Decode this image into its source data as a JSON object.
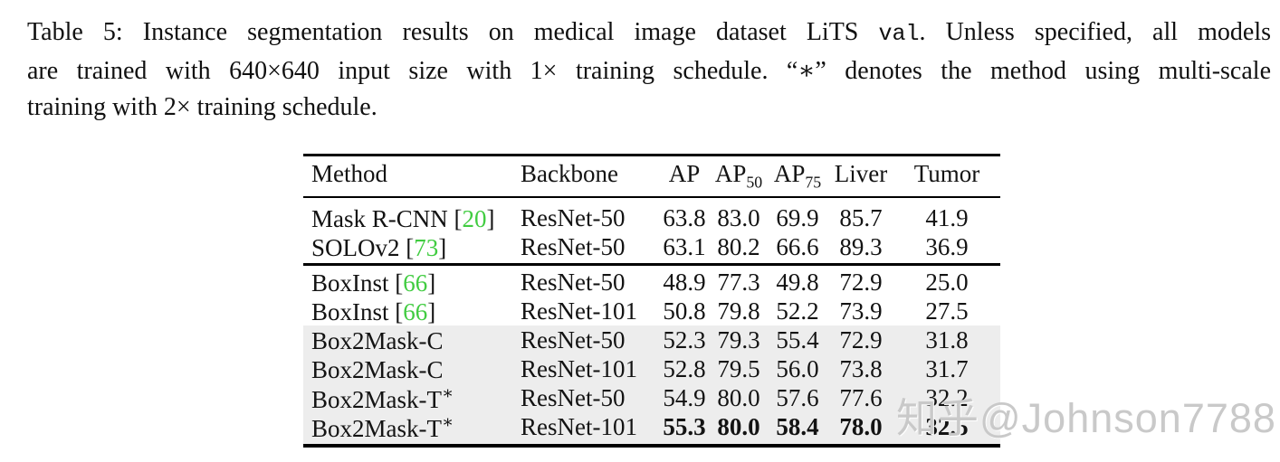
{
  "caption": {
    "line1_seg1": "Table 5: Instance segmentation results on medical image dataset LiTS ",
    "line1_code": "val",
    "line1_seg2": ". Unless specified, all models",
    "line2": "are trained with 640×640 input size with 1× training schedule. “∗” denotes the method using multi-scale",
    "line3": "training with 2× training schedule."
  },
  "table": {
    "columns": [
      {
        "label": "Method",
        "sub": ""
      },
      {
        "label": "Backbone",
        "sub": ""
      },
      {
        "label": "AP",
        "sub": ""
      },
      {
        "label": "AP",
        "sub": "50"
      },
      {
        "label": "AP",
        "sub": "75"
      },
      {
        "label": "Liver",
        "sub": ""
      },
      {
        "label": "Tumor",
        "sub": ""
      }
    ],
    "rows": [
      {
        "method": "Mask R-CNN",
        "sup": "",
        "cite_open": " [",
        "cite": "20",
        "cite_close": "]",
        "backbone": "ResNet-50",
        "values": [
          "63.8",
          "83.0",
          "69.9",
          "85.7",
          "41.9"
        ],
        "shaded": false,
        "bold": false
      },
      {
        "method": "SOLOv2",
        "sup": "",
        "cite_open": " [",
        "cite": "73",
        "cite_close": "]",
        "backbone": "ResNet-50",
        "values": [
          "63.1",
          "80.2",
          "66.6",
          "89.3",
          "36.9"
        ],
        "shaded": false,
        "bold": false
      },
      {
        "method": "BoxInst",
        "sup": "",
        "cite_open": " [",
        "cite": "66",
        "cite_close": "]",
        "backbone": "ResNet-50",
        "values": [
          "48.9",
          "77.3",
          "49.8",
          "72.9",
          "25.0"
        ],
        "shaded": false,
        "bold": false
      },
      {
        "method": "BoxInst",
        "sup": "",
        "cite_open": " [",
        "cite": "66",
        "cite_close": "]",
        "backbone": "ResNet-101",
        "values": [
          "50.8",
          "79.8",
          "52.2",
          "73.9",
          "27.5"
        ],
        "shaded": false,
        "bold": false
      },
      {
        "method": "Box2Mask-C",
        "sup": "",
        "cite_open": "",
        "cite": "",
        "cite_close": "",
        "backbone": "ResNet-50",
        "values": [
          "52.3",
          "79.3",
          "55.4",
          "72.9",
          "31.8"
        ],
        "shaded": true,
        "bold": false
      },
      {
        "method": "Box2Mask-C",
        "sup": "",
        "cite_open": "",
        "cite": "",
        "cite_close": "",
        "backbone": "ResNet-101",
        "values": [
          "52.8",
          "79.5",
          "56.0",
          "73.8",
          "31.7"
        ],
        "shaded": true,
        "bold": false
      },
      {
        "method": "Box2Mask-T",
        "sup": "∗",
        "cite_open": "",
        "cite": "",
        "cite_close": "",
        "backbone": "ResNet-50",
        "values": [
          "54.9",
          "80.0",
          "57.6",
          "77.6",
          "32.2"
        ],
        "shaded": true,
        "bold": false
      },
      {
        "method": "Box2Mask-T",
        "sup": "∗",
        "cite_open": "",
        "cite": "",
        "cite_close": "",
        "backbone": "ResNet-101",
        "values": [
          "55.3",
          "80.0",
          "58.4",
          "78.0",
          "32.5"
        ],
        "shaded": true,
        "bold": true
      }
    ]
  },
  "watermark": {
    "text": "知乎@Johnson7788"
  },
  "colors": {
    "citation_green": "#41cc41",
    "row_shade": "#ededed",
    "watermark_gray": "#c9c9c9",
    "rule_black": "#000000"
  }
}
